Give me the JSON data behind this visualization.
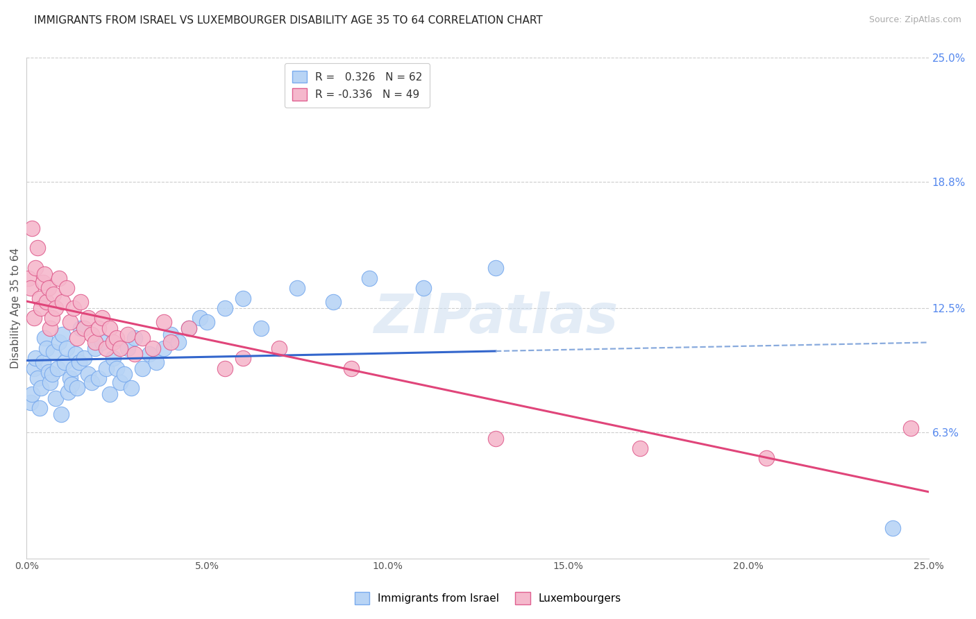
{
  "title": "IMMIGRANTS FROM ISRAEL VS LUXEMBOURGER DISABILITY AGE 35 TO 64 CORRELATION CHART",
  "source": "Source: ZipAtlas.com",
  "ylabel": "Disability Age 35 to 64",
  "xlim": [
    0.0,
    25.0
  ],
  "ylim": [
    0.0,
    25.0
  ],
  "xtick_vals": [
    0.0,
    5.0,
    10.0,
    15.0,
    20.0,
    25.0
  ],
  "xtick_labels": [
    "0.0%",
    "5.0%",
    "10.0%",
    "15.0%",
    "20.0%",
    "25.0%"
  ],
  "ytick_right_vals": [
    6.3,
    12.5,
    18.8,
    25.0
  ],
  "ytick_right_labels": [
    "6.3%",
    "12.5%",
    "18.8%",
    "25.0%"
  ],
  "series": [
    {
      "name": "Immigrants from Israel",
      "color": "#b8d4f5",
      "edge_color": "#7aabee",
      "R": 0.326,
      "N": 62,
      "trend_color": "#3366cc",
      "x": [
        0.1,
        0.15,
        0.2,
        0.25,
        0.3,
        0.35,
        0.4,
        0.45,
        0.5,
        0.55,
        0.6,
        0.65,
        0.7,
        0.75,
        0.8,
        0.85,
        0.9,
        0.95,
        1.0,
        1.05,
        1.1,
        1.15,
        1.2,
        1.25,
        1.3,
        1.35,
        1.4,
        1.45,
        1.5,
        1.6,
        1.7,
        1.8,
        1.9,
        2.0,
        2.1,
        2.2,
        2.3,
        2.4,
        2.5,
        2.6,
        2.7,
        2.8,
        2.9,
        3.0,
        3.2,
        3.4,
        3.6,
        3.8,
        4.0,
        4.2,
        4.5,
        4.8,
        5.0,
        5.5,
        6.0,
        6.5,
        7.5,
        8.5,
        9.5,
        11.0,
        13.0,
        24.0
      ],
      "y": [
        7.8,
        8.2,
        9.5,
        10.0,
        9.0,
        7.5,
        8.5,
        9.8,
        11.0,
        10.5,
        9.3,
        8.8,
        9.2,
        10.3,
        8.0,
        9.5,
        10.8,
        7.2,
        11.2,
        9.8,
        10.5,
        8.3,
        9.0,
        8.7,
        9.5,
        10.2,
        8.5,
        9.8,
        11.5,
        10.0,
        9.2,
        8.8,
        10.5,
        9.0,
        10.8,
        9.5,
        8.2,
        10.0,
        9.5,
        8.8,
        9.2,
        10.5,
        8.5,
        11.0,
        9.5,
        10.2,
        9.8,
        10.5,
        11.2,
        10.8,
        11.5,
        12.0,
        11.8,
        12.5,
        13.0,
        11.5,
        13.5,
        12.8,
        14.0,
        13.5,
        14.5,
        1.5
      ]
    },
    {
      "name": "Luxembourgers",
      "color": "#f5b8cc",
      "edge_color": "#e06090",
      "R": -0.336,
      "N": 49,
      "trend_color": "#e0457a",
      "x": [
        0.05,
        0.1,
        0.15,
        0.2,
        0.25,
        0.3,
        0.35,
        0.4,
        0.45,
        0.5,
        0.55,
        0.6,
        0.65,
        0.7,
        0.75,
        0.8,
        0.9,
        1.0,
        1.1,
        1.2,
        1.3,
        1.4,
        1.5,
        1.6,
        1.7,
        1.8,
        1.9,
        2.0,
        2.1,
        2.2,
        2.3,
        2.4,
        2.5,
        2.6,
        2.8,
        3.0,
        3.2,
        3.5,
        3.8,
        4.0,
        4.5,
        5.5,
        6.0,
        7.0,
        9.0,
        13.0,
        17.0,
        20.5,
        24.5
      ],
      "y": [
        14.0,
        13.5,
        16.5,
        12.0,
        14.5,
        15.5,
        13.0,
        12.5,
        13.8,
        14.2,
        12.8,
        13.5,
        11.5,
        12.0,
        13.2,
        12.5,
        14.0,
        12.8,
        13.5,
        11.8,
        12.5,
        11.0,
        12.8,
        11.5,
        12.0,
        11.2,
        10.8,
        11.5,
        12.0,
        10.5,
        11.5,
        10.8,
        11.0,
        10.5,
        11.2,
        10.2,
        11.0,
        10.5,
        11.8,
        10.8,
        11.5,
        9.5,
        10.0,
        10.5,
        9.5,
        6.0,
        5.5,
        5.0,
        6.5
      ]
    }
  ],
  "blue_trend_start_x": 0.0,
  "blue_trend_end_solid_x": 13.0,
  "blue_trend_end_dash_x": 25.0,
  "pink_trend_start_x": 0.0,
  "pink_trend_end_x": 25.0,
  "watermark_text": "ZIPatlas",
  "background_color": "#ffffff",
  "grid_color": "#cccccc",
  "title_fontsize": 11,
  "axis_label_fontsize": 11,
  "tick_fontsize": 10,
  "source_fontsize": 9,
  "right_tick_color": "#5588ee"
}
